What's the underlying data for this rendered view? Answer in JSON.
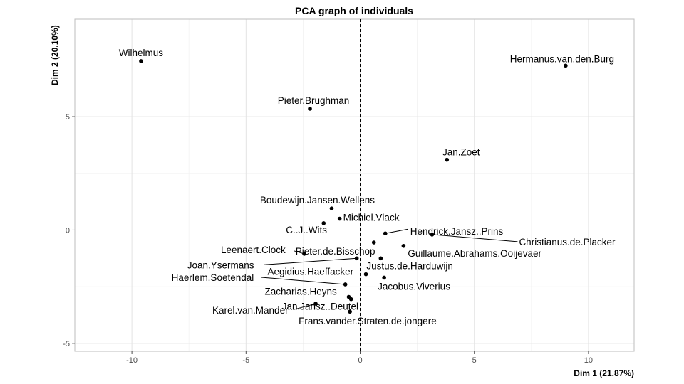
{
  "chart_data": {
    "type": "scatter",
    "title": "PCA graph of individuals",
    "xlabel": "Dim 1 (21.87%)",
    "ylabel": "Dim 2 (20.10%)",
    "xlim": [
      -12.5,
      12
    ],
    "ylim": [
      -5.35,
      9.3
    ],
    "xticks": [
      -10,
      -5,
      0,
      5,
      10
    ],
    "yticks": [
      -5,
      0,
      5
    ],
    "grid": true,
    "reference_lines": {
      "x": 0,
      "y": 0
    },
    "points": [
      {
        "label": "Wilhelmus",
        "x": -9.6,
        "y": 7.45
      },
      {
        "label": "Hermanus.van.den.Burg",
        "x": 9.0,
        "y": 7.25
      },
      {
        "label": "Pieter.Brughman",
        "x": -2.2,
        "y": 5.35
      },
      {
        "label": "Jan.Zoet",
        "x": 3.8,
        "y": 3.1
      },
      {
        "label": "Boudewijn.Jansen.Wellens",
        "x": -1.25,
        "y": 0.95
      },
      {
        "label": "Michiel.Vlack",
        "x": -0.9,
        "y": 0.5
      },
      {
        "label": "C..J..Wits",
        "x": -1.6,
        "y": 0.3
      },
      {
        "label": "Hendrick.Jansz..Prins",
        "x": 1.1,
        "y": -0.15
      },
      {
        "label": "Christianus.de.Placker",
        "x": 3.15,
        "y": -0.2
      },
      {
        "label": "Leenaert.Clock",
        "x": -2.45,
        "y": -1.05
      },
      {
        "label": "Pieter.de.Bisschop",
        "x": 0.6,
        "y": -0.55
      },
      {
        "label": "Guillaume.Abrahams.Ooijevaer",
        "x": 1.9,
        "y": -0.7
      },
      {
        "label": "Joan.Ysermans",
        "x": -0.15,
        "y": -1.25
      },
      {
        "label": "Justus.de.Harduwijn",
        "x": 0.9,
        "y": -1.25
      },
      {
        "label": "Aegidius.Haeffacker",
        "x": 0.25,
        "y": -1.95
      },
      {
        "label": "Jacobus.Viverius",
        "x": 1.05,
        "y": -2.1
      },
      {
        "label": "Haerlem.Soetendal",
        "x": -0.65,
        "y": -2.4
      },
      {
        "label": "Zacharias.Heyns",
        "x": -0.5,
        "y": -2.95
      },
      {
        "label": "Jan.Jansz..Deutel",
        "x": -0.4,
        "y": -3.05
      },
      {
        "label": "Karel.van.Mander",
        "x": -1.95,
        "y": -3.25
      },
      {
        "label": "Frans.vander.Straten.de.jongere",
        "x": -0.45,
        "y": -3.6
      }
    ]
  }
}
